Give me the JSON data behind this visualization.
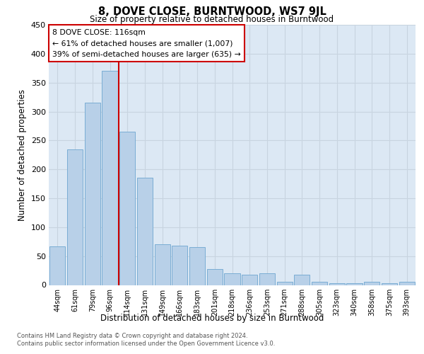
{
  "title": "8, DOVE CLOSE, BURNTWOOD, WS7 9JL",
  "subtitle": "Size of property relative to detached houses in Burntwood",
  "xlabel": "Distribution of detached houses by size in Burntwood",
  "ylabel": "Number of detached properties",
  "categories": [
    "44sqm",
    "61sqm",
    "79sqm",
    "96sqm",
    "114sqm",
    "131sqm",
    "149sqm",
    "166sqm",
    "183sqm",
    "201sqm",
    "218sqm",
    "236sqm",
    "253sqm",
    "271sqm",
    "288sqm",
    "305sqm",
    "323sqm",
    "340sqm",
    "358sqm",
    "375sqm",
    "393sqm"
  ],
  "values": [
    67,
    235,
    315,
    370,
    265,
    185,
    70,
    68,
    65,
    28,
    20,
    18,
    20,
    5,
    18,
    5,
    3,
    3,
    5,
    3,
    5
  ],
  "bar_color": "#b8d0e8",
  "bar_edge_color": "#7aadd4",
  "vline_x": 3.5,
  "annotation_line1": "8 DOVE CLOSE: 116sqm",
  "annotation_line2": "← 61% of detached houses are smaller (1,007)",
  "annotation_line3": "39% of semi-detached houses are larger (635) →",
  "vline_color": "#cc0000",
  "box_edge_color": "#cc0000",
  "ylim_max": 450,
  "yticks": [
    0,
    50,
    100,
    150,
    200,
    250,
    300,
    350,
    400,
    450
  ],
  "grid_color": "#c8d4e0",
  "bg_color": "#dce8f4",
  "footer1": "Contains HM Land Registry data © Crown copyright and database right 2024.",
  "footer2": "Contains public sector information licensed under the Open Government Licence v3.0."
}
